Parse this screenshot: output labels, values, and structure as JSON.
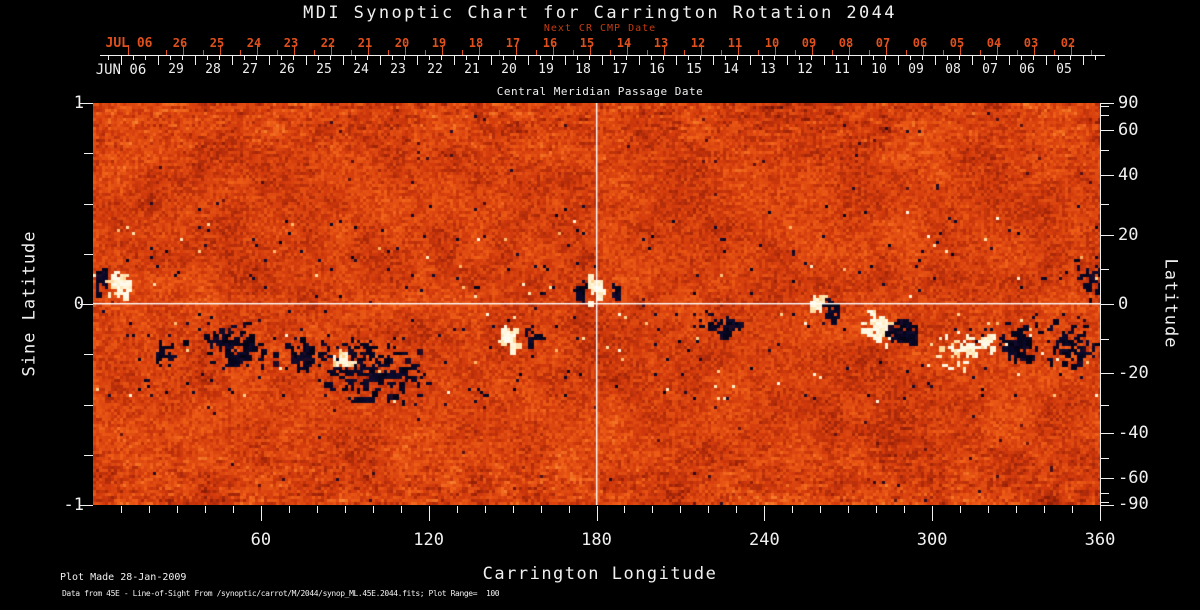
{
  "header": {
    "title": "MDI Synoptic Chart for Carrington Rotation 2044",
    "next_cr_label": "Next CR CMP Date"
  },
  "cmp_axis": {
    "next_month": "JUL 06",
    "next_days": [
      "26",
      "25",
      "24",
      "23",
      "22",
      "21",
      "20",
      "19",
      "18",
      "17",
      "16",
      "15",
      "14",
      "13",
      "12",
      "11",
      "10",
      "09",
      "08",
      "07",
      "06",
      "05",
      "04",
      "03",
      "02"
    ],
    "month": "JUN 06",
    "days": [
      "29",
      "28",
      "27",
      "26",
      "25",
      "24",
      "23",
      "22",
      "21",
      "20",
      "19",
      "18",
      "17",
      "16",
      "15",
      "14",
      "13",
      "12",
      "11",
      "10",
      "09",
      "08",
      "07",
      "06",
      "05"
    ],
    "title": "Central Meridian Passage Date"
  },
  "axes": {
    "left": {
      "title": "Sine Latitude",
      "minor_step": 0.25,
      "range": [
        -1,
        1
      ],
      "labeled_ticks": [
        {
          "value": 1,
          "label": "1"
        },
        {
          "value": 0,
          "label": "0"
        },
        {
          "value": -1,
          "label": "-1"
        }
      ]
    },
    "right": {
      "title": "Latitude",
      "tick_degrees": [
        90,
        80,
        70,
        60,
        50,
        40,
        30,
        20,
        10,
        0,
        -10,
        -20,
        -30,
        -40,
        -50,
        -60,
        -70,
        -80,
        -90
      ],
      "labeled_degrees": [
        90,
        60,
        40,
        20,
        0,
        -20,
        -40,
        -60,
        -90
      ]
    },
    "bottom": {
      "title": "Carrington Longitude",
      "range_deg": [
        0,
        360
      ],
      "minor_step_deg": 10,
      "labeled_degrees": [
        60,
        120,
        180,
        240,
        300,
        360
      ]
    }
  },
  "footer": {
    "line1": "Plot Made 28-Jan-2009",
    "line2": "Data from 45E - Line-of-Sight From /synoptic/carrot/M/2044/synop_ML.45E.2044.fits; Plot Range=  100"
  },
  "colors": {
    "background": "#000000",
    "foreground": "#f0f0f0",
    "cmp_next_axis": "#e0501c",
    "cmp_next_header": "#c43b10",
    "grid_line": "#ffffff",
    "map_base_orange": "#e04410",
    "map_positive_polarity": "#fff6e2",
    "map_negative_polarity": "#05051e"
  },
  "chart_data": {
    "type": "heatmap",
    "title": "MDI Synoptic Chart for Carrington Rotation 2044",
    "carrington_rotation": 2044,
    "xlabel": "Carrington Longitude",
    "ylabel_left": "Sine Latitude",
    "ylabel_right": "Latitude",
    "xlim": [
      0,
      360
    ],
    "ylim_sine_latitude": [
      -1,
      1
    ],
    "plot_range_gauss": 100,
    "colormap": "line-of-sight magnetic field: dark/navy = negative polarity, white/yellow = positive polarity, orange-red mottle = quiet sun noise",
    "grid_lines": {
      "vertical_at_longitude": 180,
      "horizontal_at_sine_latitude": 0
    },
    "active_regions": [
      {
        "lon": 2.5,
        "sinlat": 0.12,
        "rx_deg": 2.5,
        "ry_sin": 0.07,
        "polarity": "negative",
        "density": 0.9
      },
      {
        "lon": 8.5,
        "sinlat": 0.1,
        "rx_deg": 4.5,
        "ry_sin": 0.08,
        "polarity": "positive",
        "density": 0.95
      },
      {
        "lon": 26,
        "sinlat": -0.22,
        "rx_deg": 6,
        "ry_sin": 0.06,
        "polarity": "negative",
        "density": 0.3
      },
      {
        "lon": 50,
        "sinlat": -0.2,
        "rx_deg": 13,
        "ry_sin": 0.12,
        "polarity": "negative",
        "density": 0.42
      },
      {
        "lon": 76,
        "sinlat": -0.24,
        "rx_deg": 8,
        "ry_sin": 0.09,
        "polarity": "negative",
        "density": 0.5
      },
      {
        "lon": 99,
        "sinlat": -0.32,
        "rx_deg": 20,
        "ry_sin": 0.17,
        "polarity": "negative",
        "density": 0.33
      },
      {
        "lon": 89,
        "sinlat": -0.27,
        "rx_deg": 3.5,
        "ry_sin": 0.05,
        "polarity": "positive",
        "density": 0.8
      },
      {
        "lon": 148,
        "sinlat": -0.16,
        "rx_deg": 4.5,
        "ry_sin": 0.055,
        "polarity": "positive",
        "density": 0.95
      },
      {
        "lon": 156,
        "sinlat": -0.15,
        "rx_deg": 4,
        "ry_sin": 0.05,
        "polarity": "negative",
        "density": 0.5
      },
      {
        "lon": 174,
        "sinlat": 0.07,
        "rx_deg": 2.5,
        "ry_sin": 0.06,
        "polarity": "negative",
        "density": 0.8
      },
      {
        "lon": 179.5,
        "sinlat": 0.08,
        "rx_deg": 3,
        "ry_sin": 0.07,
        "polarity": "positive",
        "density": 0.95
      },
      {
        "lon": 186,
        "sinlat": 0.07,
        "rx_deg": 3,
        "ry_sin": 0.05,
        "polarity": "negative",
        "density": 0.45
      },
      {
        "lon": 225,
        "sinlat": -0.1,
        "rx_deg": 8,
        "ry_sin": 0.06,
        "polarity": "negative",
        "density": 0.55
      },
      {
        "lon": 258.5,
        "sinlat": 0.01,
        "rx_deg": 3.5,
        "ry_sin": 0.06,
        "polarity": "positive",
        "density": 0.95
      },
      {
        "lon": 263.5,
        "sinlat": -0.02,
        "rx_deg": 3.5,
        "ry_sin": 0.06,
        "polarity": "negative",
        "density": 0.9
      },
      {
        "lon": 280,
        "sinlat": -0.11,
        "rx_deg": 6,
        "ry_sin": 0.08,
        "polarity": "positive",
        "density": 0.95
      },
      {
        "lon": 289.5,
        "sinlat": -0.14,
        "rx_deg": 6,
        "ry_sin": 0.08,
        "polarity": "negative",
        "density": 0.9
      },
      {
        "lon": 310,
        "sinlat": -0.22,
        "rx_deg": 12,
        "ry_sin": 0.1,
        "polarity": "positive",
        "density": 0.25
      },
      {
        "lon": 319,
        "sinlat": -0.18,
        "rx_deg": 3,
        "ry_sin": 0.06,
        "polarity": "positive",
        "density": 0.75
      },
      {
        "lon": 331,
        "sinlat": -0.19,
        "rx_deg": 8,
        "ry_sin": 0.11,
        "polarity": "negative",
        "density": 0.55
      },
      {
        "lon": 349,
        "sinlat": -0.2,
        "rx_deg": 10,
        "ry_sin": 0.12,
        "polarity": "negative",
        "density": 0.38
      },
      {
        "lon": 357,
        "sinlat": 0.14,
        "rx_deg": 7,
        "ry_sin": 0.12,
        "polarity": "negative",
        "density": 0.28
      }
    ]
  }
}
